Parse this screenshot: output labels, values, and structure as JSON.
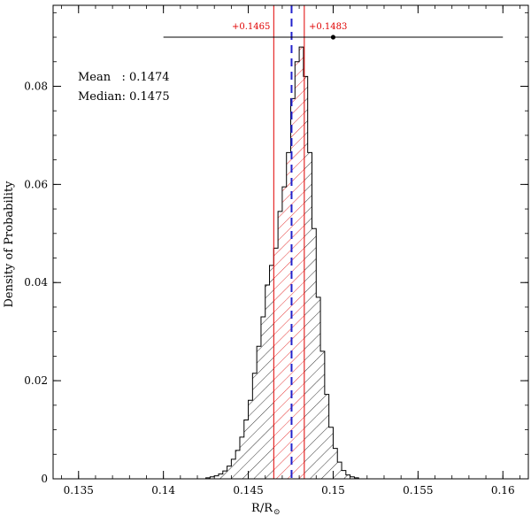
{
  "chart_data": {
    "type": "histogram",
    "title": "",
    "xlabel": "R/R",
    "xlabel_subscript": "⊙",
    "ylabel": "Density of Probability",
    "xlim": [
      0.1335,
      0.1615
    ],
    "ylim": [
      0,
      0.0965
    ],
    "x_ticks": [
      0.135,
      0.14,
      0.145,
      0.15,
      0.155,
      0.16
    ],
    "x_tick_labels": [
      "0.135",
      "0.14",
      "0.145",
      "0.15",
      "0.155",
      "0.16"
    ],
    "y_ticks": [
      0,
      0.02,
      0.04,
      0.06,
      0.08
    ],
    "y_tick_labels": [
      "0",
      "0.02",
      "0.04",
      "0.06",
      "0.08"
    ],
    "bin_start": 0.1425,
    "bin_width": 0.00025,
    "bin_values": [
      0.0002,
      0.0004,
      0.0006,
      0.001,
      0.0016,
      0.0026,
      0.004,
      0.0058,
      0.0085,
      0.012,
      0.016,
      0.0215,
      0.027,
      0.033,
      0.0395,
      0.0435,
      0.047,
      0.0545,
      0.0595,
      0.0665,
      0.0775,
      0.085,
      0.088,
      0.082,
      0.0665,
      0.051,
      0.037,
      0.026,
      0.0172,
      0.0105,
      0.0062,
      0.0034,
      0.0017,
      0.0008,
      0.0004,
      0.0002
    ],
    "stats": {
      "mean_text": "Mean   : 0.1474",
      "median_text": "Median: 0.1475"
    },
    "median": 0.14755,
    "credible_interval": {
      "lower": 0.1465,
      "upper": 0.1483,
      "lower_label": "+0.1465",
      "upper_label": "+0.1483",
      "color": "#e00000"
    },
    "reference_line": {
      "y": 0.09,
      "x_start": 0.14,
      "x_end": 0.16,
      "marker_x": 0.15
    },
    "colors": {
      "histogram": "#000000",
      "interval": "#e00000",
      "median_line": "#2222cc"
    }
  }
}
